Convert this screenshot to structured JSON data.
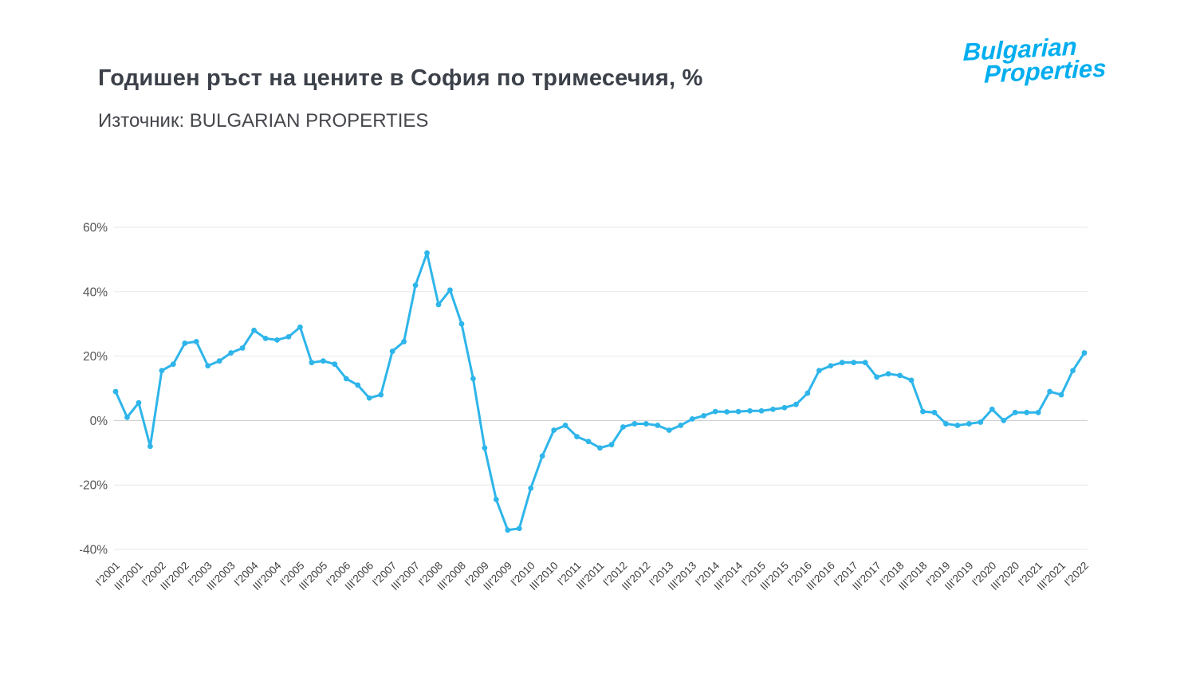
{
  "header": {
    "title": "Годишен ръст на цените в София по тримесечия, %",
    "subtitle": "Източник: BULGARIAN PROPERTIES"
  },
  "logo": {
    "line1": "Bulgarian",
    "line2": "Properties",
    "color": "#00aeef"
  },
  "chart_data": {
    "type": "line",
    "title": "Годишен ръст на цените в София по тримесечия, %",
    "source": "Източник: BULGARIAN PROPERTIES",
    "series_color": "#2eb5ea",
    "grid_color": "#e7e7e7",
    "zero_line_color": "#c9c9c9",
    "axis_label_color": "#555555",
    "tick_label_color": "#3d3d3d",
    "grid": true,
    "legend": "none",
    "ylim": [
      -40,
      60
    ],
    "y_ticks": [
      60,
      40,
      20,
      0,
      -20,
      -40
    ],
    "y_tick_suffix": "%",
    "x_label_every": 2,
    "x": [
      "I'2001",
      "II'2001",
      "III'2001",
      "IV'2001",
      "I'2002",
      "II'2002",
      "III'2002",
      "IV'2002",
      "I'2003",
      "II'2003",
      "III'2003",
      "IV'2003",
      "I'2004",
      "II'2004",
      "III'2004",
      "IV'2004",
      "I'2005",
      "II'2005",
      "III'2005",
      "IV'2005",
      "I'2006",
      "II'2006",
      "III'2006",
      "IV'2006",
      "I'2007",
      "II'2007",
      "III'2007",
      "IV'2007",
      "I'2008",
      "II'2008",
      "III'2008",
      "IV'2008",
      "I'2009",
      "II'2009",
      "III'2009",
      "IV'2009",
      "I'2010",
      "II'2010",
      "III'2010",
      "IV'2010",
      "I'2011",
      "II'2011",
      "III'2011",
      "IV'2011",
      "I'2012",
      "II'2012",
      "III'2012",
      "IV'2012",
      "I'2013",
      "II'2013",
      "III'2013",
      "IV'2013",
      "I'2014",
      "II'2014",
      "III'2014",
      "IV'2014",
      "I'2015",
      "II'2015",
      "III'2015",
      "IV'2015",
      "I'2016",
      "II'2016",
      "III'2016",
      "IV'2016",
      "I'2017",
      "II'2017",
      "III'2017",
      "IV'2017",
      "I'2018",
      "II'2018",
      "III'2018",
      "IV'2018",
      "I'2019",
      "II'2019",
      "III'2019",
      "IV'2019",
      "I'2020",
      "II'2020",
      "III'2020",
      "IV'2020",
      "I'2021",
      "II'2021",
      "III'2021",
      "IV'2021",
      "I'2022"
    ],
    "values": [
      9,
      1,
      5.5,
      -8,
      15.5,
      17.5,
      24,
      24.5,
      17,
      18.5,
      21,
      22.5,
      28,
      25.5,
      25,
      26,
      29,
      18,
      18.5,
      17.5,
      13,
      11,
      7,
      8,
      21.5,
      24.5,
      42,
      52,
      36,
      40.5,
      30,
      13,
      -8.5,
      -24.5,
      -34,
      -33.5,
      -21,
      -11,
      -3,
      -1.5,
      -5,
      -6.5,
      -8.5,
      -7.5,
      -2,
      -1,
      -1,
      -1.5,
      -3,
      -1.5,
      0.5,
      1.5,
      2.8,
      2.7,
      2.8,
      3,
      3,
      3.5,
      4,
      5,
      8.5,
      15.5,
      17,
      18,
      18,
      18,
      13.5,
      14.5,
      14,
      12.5,
      2.8,
      2.5,
      -1,
      -1.5,
      -1,
      -0.5,
      3.5,
      0,
      2.5,
      2.5,
      2.5,
      9,
      8,
      15.5,
      21
    ]
  }
}
